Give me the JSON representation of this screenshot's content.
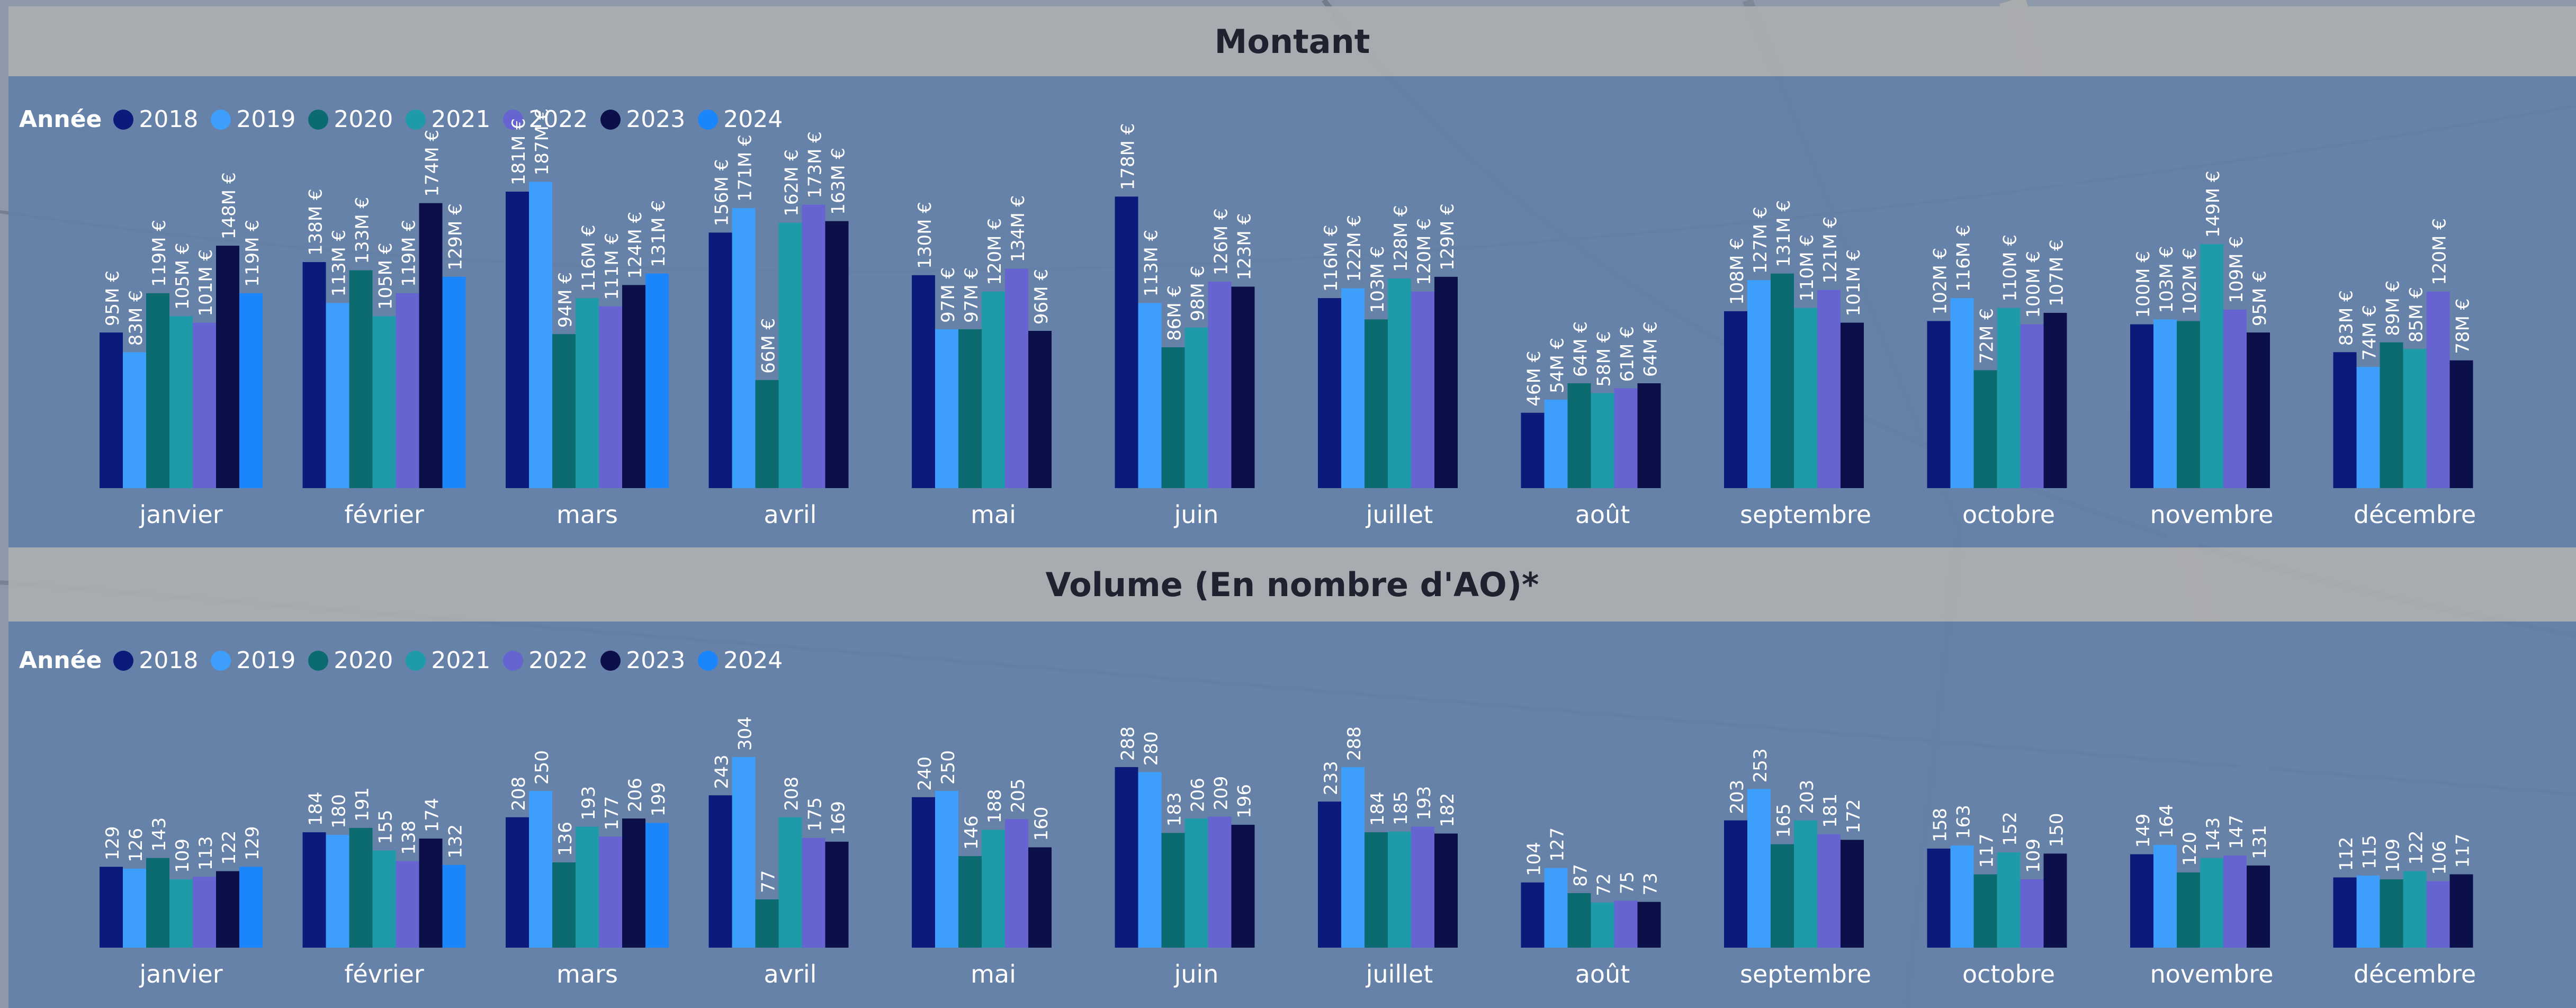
{
  "legend": {
    "title": "Année",
    "items": [
      {
        "label": "2018",
        "color": "#0c1a7c"
      },
      {
        "label": "2019",
        "color": "#3d9ffb"
      },
      {
        "label": "2020",
        "color": "#0b6b70"
      },
      {
        "label": "2021",
        "color": "#1f9aa8"
      },
      {
        "label": "2022",
        "color": "#6564d0"
      },
      {
        "label": "2023",
        "color": "#0b0f4a"
      },
      {
        "label": "2024",
        "color": "#1b86fb"
      }
    ]
  },
  "chart_data": [
    {
      "type": "bar",
      "title": "Montant",
      "legend_title": "Année",
      "legend_position": "top-left",
      "ylim": [
        0,
        181
      ],
      "categories": [
        "janvier",
        "février",
        "mars",
        "avril",
        "mai",
        "juin",
        "juillet",
        "août",
        "septembre",
        "octobre",
        "novembre",
        "décembre"
      ],
      "series": [
        {
          "name": "2018",
          "color": "#0c1a7c",
          "values": [
            95,
            138,
            181,
            156,
            130,
            178,
            116,
            46,
            108,
            102,
            100,
            83
          ]
        },
        {
          "name": "2019",
          "color": "#3d9ffb",
          "values": [
            83,
            113,
            187,
            171,
            97,
            113,
            122,
            54,
            127,
            116,
            103,
            74
          ]
        },
        {
          "name": "2020",
          "color": "#0b6b70",
          "values": [
            119,
            133,
            94,
            66,
            97,
            86,
            103,
            64,
            131,
            72,
            102,
            89
          ]
        },
        {
          "name": "2021",
          "color": "#1f9aa8",
          "values": [
            105,
            105,
            116,
            162,
            120,
            98,
            128,
            58,
            110,
            110,
            149,
            85
          ]
        },
        {
          "name": "2022",
          "color": "#6564d0",
          "values": [
            101,
            119,
            111,
            173,
            134,
            126,
            120,
            61,
            121,
            100,
            109,
            120
          ]
        },
        {
          "name": "2023",
          "color": "#0b0f4a",
          "values": [
            148,
            174,
            124,
            163,
            96,
            123,
            129,
            64,
            101,
            107,
            95,
            78
          ]
        },
        {
          "name": "2024",
          "color": "#1b86fb",
          "values": [
            119,
            129,
            131,
            null,
            null,
            null,
            null,
            null,
            null,
            null,
            null,
            null
          ]
        }
      ],
      "labels": [
        [
          "95M €",
          "138M €",
          "181M €",
          "156M €",
          "130M €",
          "178M €",
          "116M €",
          "46M €",
          "108M €",
          "102M €",
          "100M €",
          "83M €"
        ],
        [
          "83M €",
          "113M €",
          "187M €",
          "171M €",
          "97M €",
          "113M €",
          "122M €",
          "54M €",
          "127M €",
          "116M €",
          "103M €",
          "74M €"
        ],
        [
          "119M €",
          "133M €",
          "94M €",
          "66M €",
          "97M €",
          "86M €",
          "103M €",
          "64M €",
          "131M €",
          "72M €",
          "102M €",
          "89M €"
        ],
        [
          "105M €",
          "105M €",
          "116M €",
          "162M €",
          "120M €",
          "98M €",
          "128M €",
          "58M €",
          "110M €",
          "110M €",
          "149M €",
          "85M €"
        ],
        [
          "101M €",
          "119M €",
          "111M €",
          "173M €",
          "134M €",
          "126M €",
          "120M €",
          "61M €",
          "121M €",
          "100M €",
          "109M €",
          "120M €"
        ],
        [
          "148M €",
          "174M €",
          "124M €",
          "163M €",
          "96M €",
          "123M €",
          "129M €",
          "64M €",
          "101M €",
          "107M €",
          "95M €",
          "78M €"
        ],
        [
          "119M €",
          "129M €",
          "131M €",
          "",
          "",
          "",
          "",
          "",
          "",
          "",
          "",
          ""
        ]
      ]
    },
    {
      "type": "bar",
      "title": "Volume (En nombre d'AO)*",
      "legend_title": "Année",
      "legend_position": "top-left",
      "ylim": [
        0,
        304
      ],
      "categories": [
        "janvier",
        "février",
        "mars",
        "avril",
        "mai",
        "juin",
        "juillet",
        "août",
        "septembre",
        "octobre",
        "novembre",
        "décembre"
      ],
      "series": [
        {
          "name": "2018",
          "color": "#0c1a7c",
          "values": [
            129,
            184,
            208,
            243,
            240,
            288,
            233,
            104,
            203,
            158,
            149,
            112
          ]
        },
        {
          "name": "2019",
          "color": "#3d9ffb",
          "values": [
            126,
            180,
            250,
            304,
            250,
            280,
            288,
            127,
            253,
            163,
            164,
            115
          ]
        },
        {
          "name": "2020",
          "color": "#0b6b70",
          "values": [
            143,
            191,
            136,
            77,
            146,
            183,
            184,
            87,
            165,
            117,
            120,
            109
          ]
        },
        {
          "name": "2021",
          "color": "#1f9aa8",
          "values": [
            109,
            155,
            193,
            208,
            188,
            206,
            185,
            72,
            203,
            152,
            143,
            122
          ]
        },
        {
          "name": "2022",
          "color": "#6564d0",
          "values": [
            113,
            138,
            177,
            175,
            205,
            209,
            193,
            75,
            181,
            109,
            147,
            106
          ]
        },
        {
          "name": "2023",
          "color": "#0b0f4a",
          "values": [
            122,
            174,
            206,
            169,
            160,
            196,
            182,
            73,
            172,
            150,
            131,
            117
          ]
        },
        {
          "name": "2024",
          "color": "#1b86fb",
          "values": [
            129,
            132,
            199,
            null,
            null,
            null,
            null,
            null,
            null,
            null,
            null,
            null
          ]
        }
      ],
      "labels": [
        [
          "129",
          "184",
          "208",
          "243",
          "240",
          "288",
          "233",
          "104",
          "203",
          "158",
          "149",
          "112"
        ],
        [
          "126",
          "180",
          "250",
          "304",
          "250",
          "280",
          "288",
          "127",
          "253",
          "163",
          "164",
          "115"
        ],
        [
          "143",
          "191",
          "136",
          "77",
          "146",
          "183",
          "184",
          "87",
          "165",
          "117",
          "120",
          "109"
        ],
        [
          "109",
          "155",
          "193",
          "208",
          "188",
          "206",
          "185",
          "72",
          "203",
          "152",
          "143",
          "122"
        ],
        [
          "113",
          "138",
          "177",
          "175",
          "205",
          "209",
          "193",
          "75",
          "181",
          "109",
          "147",
          "106"
        ],
        [
          "122",
          "174",
          "206",
          "169",
          "160",
          "196",
          "182",
          "73",
          "172",
          "150",
          "131",
          "117"
        ],
        [
          "129",
          "132",
          "199",
          "",
          "",
          "",
          "",
          "",
          "",
          "",
          "",
          ""
        ]
      ]
    }
  ]
}
